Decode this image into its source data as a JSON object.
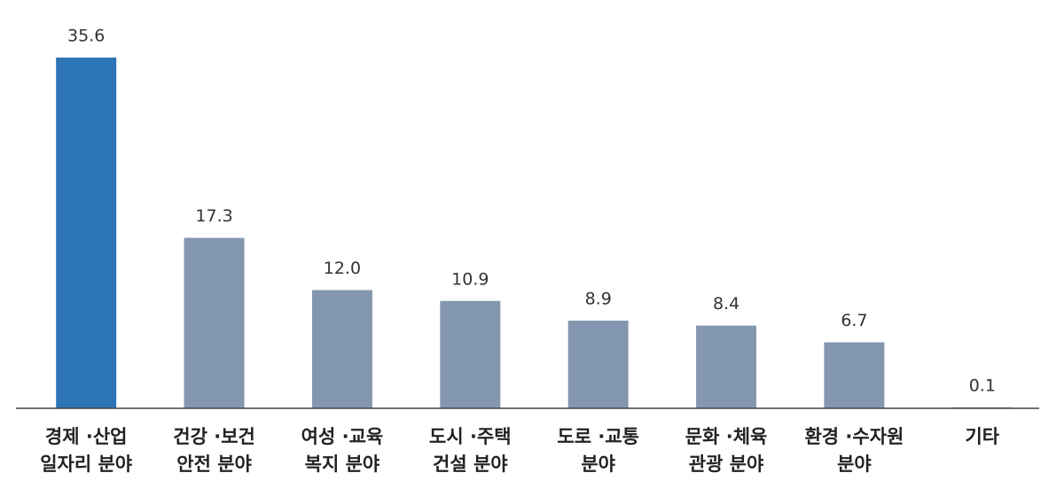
{
  "chart_data": {
    "type": "bar",
    "categories": [
      [
        "경제 ·산업",
        "일자리 분야"
      ],
      [
        "건강 ·보건",
        "안전 분야"
      ],
      [
        "여성 ·교육",
        "복지 분야"
      ],
      [
        "도시 ·주택",
        "건설 분야"
      ],
      [
        "도로 ·교통",
        "분야"
      ],
      [
        "문화 ·체육",
        "관광 분야"
      ],
      [
        "환경 ·수자원",
        "분야"
      ],
      [
        "기타"
      ]
    ],
    "values": [
      35.6,
      17.3,
      12.0,
      10.9,
      8.9,
      8.4,
      6.7,
      0.1
    ],
    "value_labels": [
      "35.6",
      "17.3",
      "12.0",
      "10.9",
      "8.9",
      "8.4",
      "6.7",
      "0.1"
    ],
    "colors": [
      "#2e75b6",
      "#8497b0",
      "#8497b0",
      "#8497b0",
      "#8497b0",
      "#8497b0",
      "#8497b0",
      "#8497b0"
    ]
  }
}
